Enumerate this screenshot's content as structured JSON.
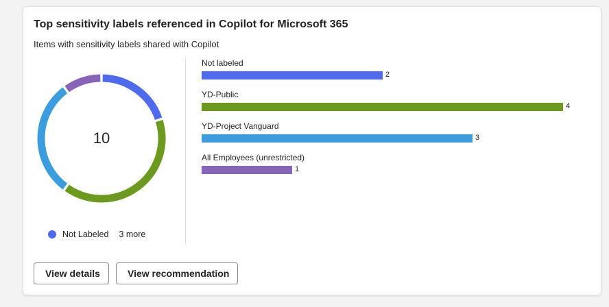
{
  "card": {
    "title": "Top sensitivity labels referenced in Copilot for Microsoft 365",
    "subtitle": "Items with sensitivity labels shared with Copilot"
  },
  "donut": {
    "total": "10",
    "legend": {
      "label": "Not Labeled",
      "color": "#4f6bed",
      "more": "3 more"
    }
  },
  "chart_data": {
    "type": "bar",
    "orientation": "horizontal",
    "categories": [
      "Not labeled",
      "YD-Public",
      "YD-Project Vanguard",
      "All Employees (unrestricted)"
    ],
    "values": [
      2,
      4,
      3,
      1
    ],
    "colors": [
      "#4f6bed",
      "#6b9a1f",
      "#3b9ddd",
      "#8764b8"
    ],
    "xlim": [
      0,
      4
    ],
    "grid": false
  },
  "buttons": {
    "view_details": "View details",
    "view_recommendation": "View recommendation"
  }
}
